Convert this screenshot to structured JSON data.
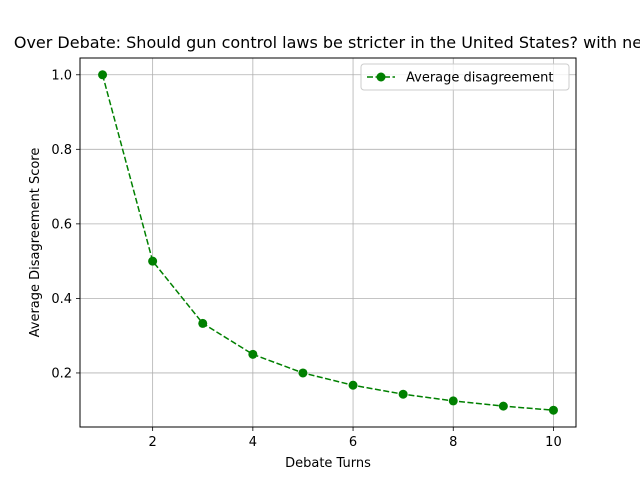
{
  "chart_data": {
    "type": "line",
    "title": "Over Debate: Should gun control laws be stricter in the United States? with ne",
    "xlabel": "Debate Turns",
    "ylabel": "Average Disagreement Score",
    "x": [
      1,
      2,
      3,
      4,
      5,
      6,
      7,
      8,
      9,
      10
    ],
    "series": [
      {
        "name": "Average disagreement",
        "values": [
          1.0,
          0.5,
          0.333,
          0.25,
          0.2,
          0.167,
          0.143,
          0.125,
          0.111,
          0.1
        ],
        "color": "#008000",
        "line_style": "dashed",
        "marker": "circle"
      }
    ],
    "xlim": [
      0.55,
      10.45
    ],
    "ylim": [
      0.055,
      1.045
    ],
    "xticks": [
      2,
      4,
      6,
      8,
      10
    ],
    "xtick_labels": [
      "2",
      "4",
      "6",
      "8",
      "10"
    ],
    "yticks": [
      0.2,
      0.4,
      0.6,
      0.8,
      1.0
    ],
    "ytick_labels": [
      "0.2",
      "0.4",
      "0.6",
      "0.8",
      "1.0"
    ],
    "grid": true,
    "legend_position": "top-right"
  }
}
